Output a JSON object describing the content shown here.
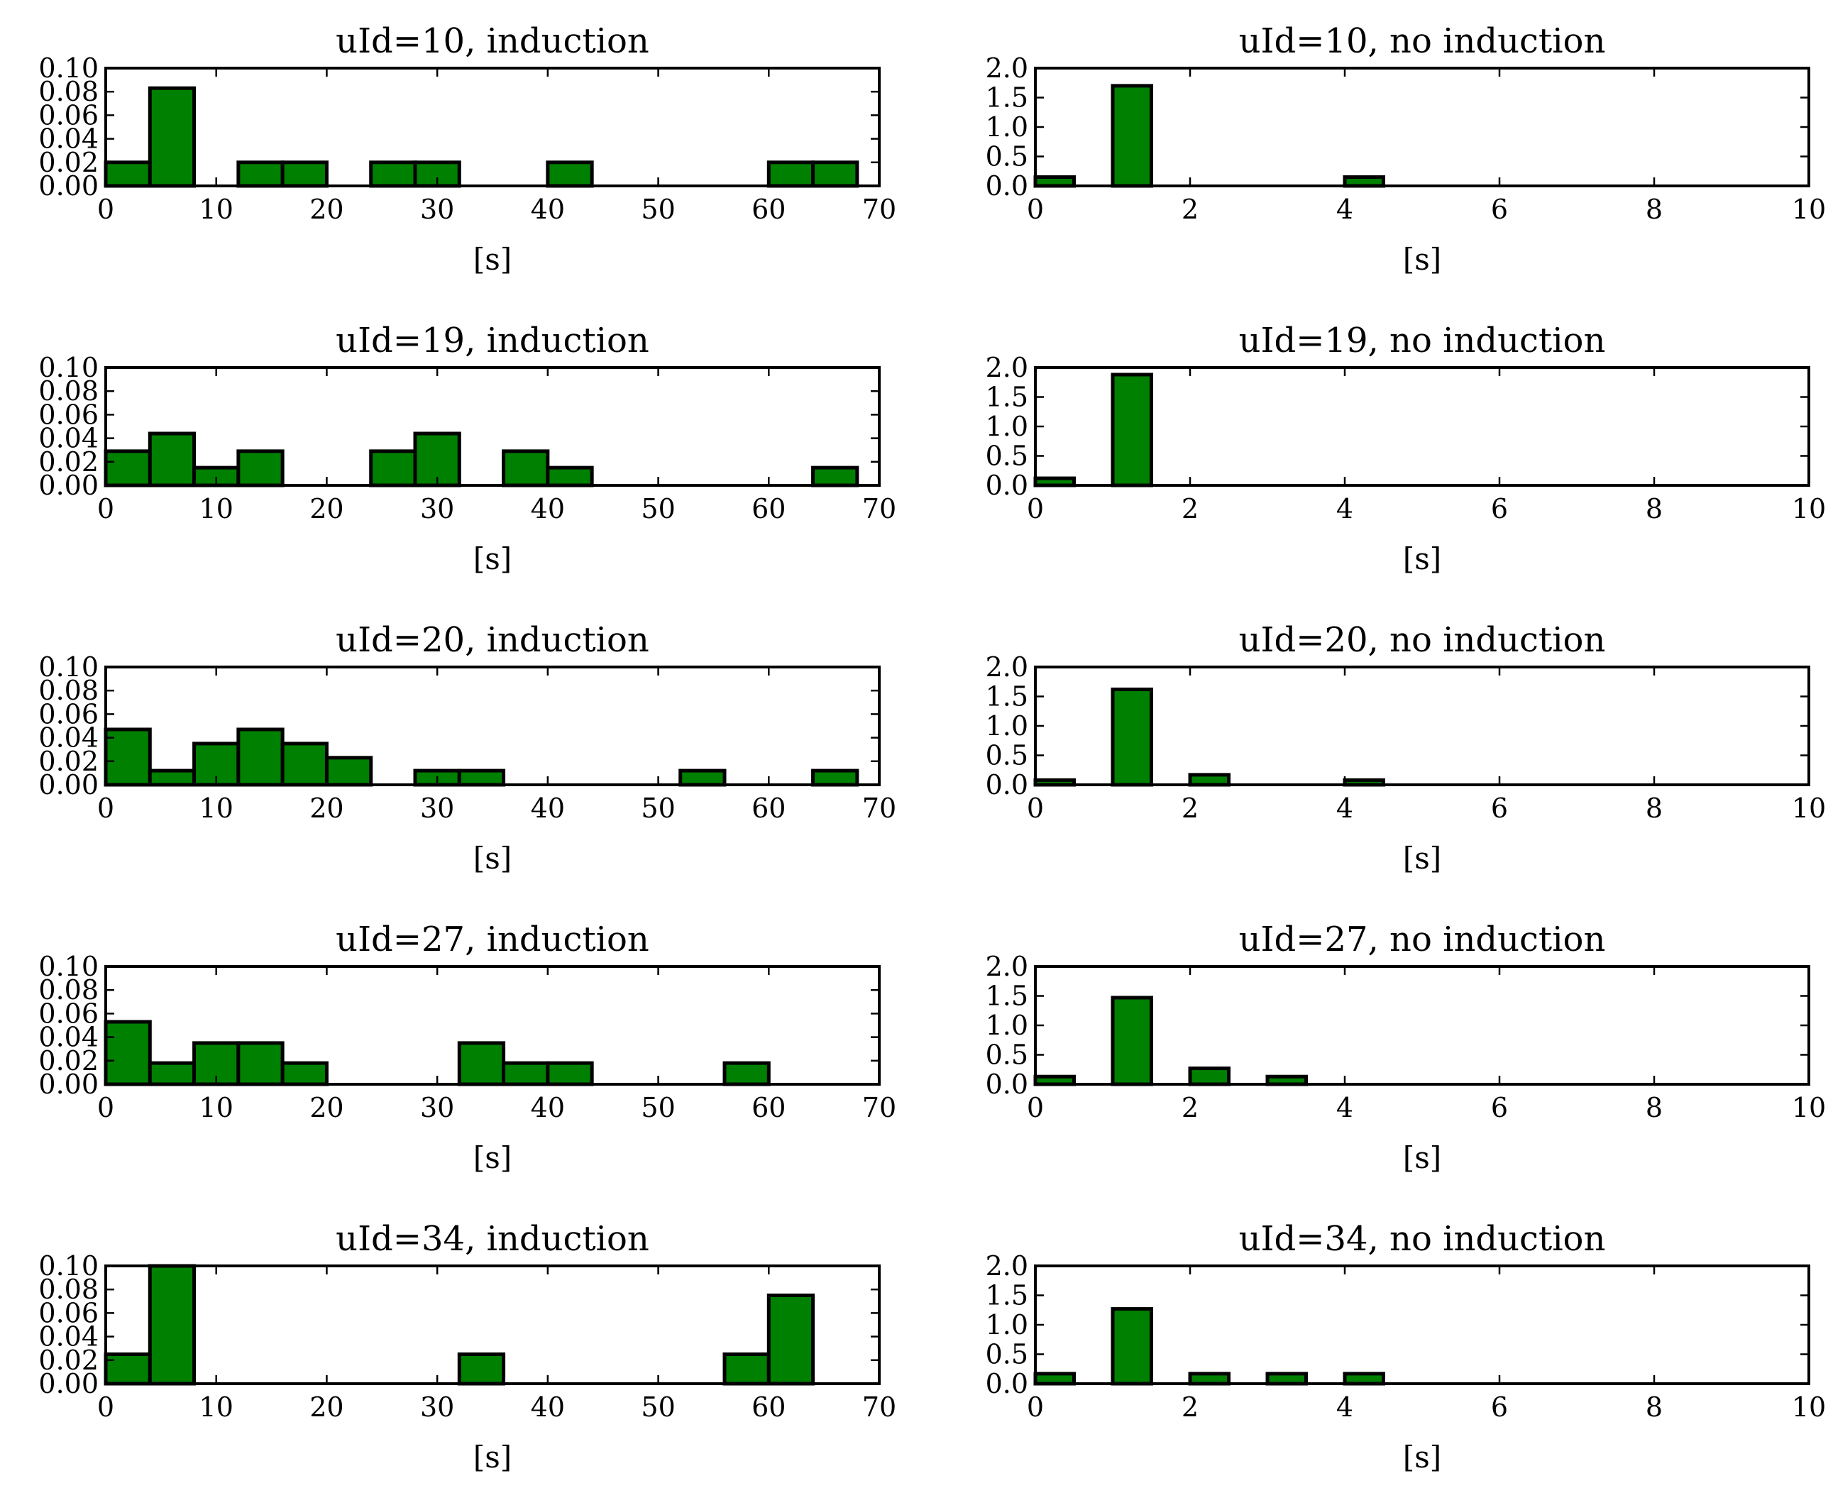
{
  "colors": {
    "bar_fill": "#008000",
    "bar_edge": "#000000"
  },
  "chart_data": [
    {
      "type": "bar",
      "title": "uId=10, induction",
      "xlabel": "[s]",
      "ylabel": "",
      "xlim": [
        0,
        70
      ],
      "ylim": [
        0,
        0.1
      ],
      "xticks": [
        0,
        10,
        20,
        30,
        40,
        50,
        60,
        70
      ],
      "xtick_labels": [
        "0",
        "10",
        "20",
        "30",
        "40",
        "50",
        "60",
        "70"
      ],
      "yticks": [
        0,
        0.02,
        0.04,
        0.06,
        0.08,
        0.1
      ],
      "ytick_labels": [
        "0.00",
        "0.02",
        "0.04",
        "0.06",
        "0.08",
        "0.10"
      ],
      "bin_width": 4,
      "bars": [
        [
          0,
          0.02
        ],
        [
          4,
          0.083
        ],
        [
          12,
          0.02
        ],
        [
          16,
          0.02
        ],
        [
          24,
          0.02
        ],
        [
          28,
          0.02
        ],
        [
          40,
          0.02
        ],
        [
          60,
          0.02
        ],
        [
          64,
          0.02
        ]
      ]
    },
    {
      "type": "bar",
      "title": "uId=10, no induction",
      "xlabel": "[s]",
      "ylabel": "",
      "xlim": [
        0,
        10
      ],
      "ylim": [
        0,
        2.0
      ],
      "xticks": [
        0,
        2,
        4,
        6,
        8,
        10
      ],
      "xtick_labels": [
        "0",
        "2",
        "4",
        "6",
        "8",
        "10"
      ],
      "yticks": [
        0,
        0.5,
        1.0,
        1.5,
        2.0
      ],
      "ytick_labels": [
        "0.0",
        "0.5",
        "1.0",
        "1.5",
        "2.0"
      ],
      "bin_width": 0.5,
      "bars": [
        [
          0,
          0.15
        ],
        [
          1,
          1.7
        ],
        [
          4,
          0.15
        ]
      ]
    },
    {
      "type": "bar",
      "title": "uId=19, induction",
      "xlabel": "[s]",
      "ylabel": "",
      "xlim": [
        0,
        70
      ],
      "ylim": [
        0,
        0.1
      ],
      "xticks": [
        0,
        10,
        20,
        30,
        40,
        50,
        60,
        70
      ],
      "xtick_labels": [
        "0",
        "10",
        "20",
        "30",
        "40",
        "50",
        "60",
        "70"
      ],
      "yticks": [
        0,
        0.02,
        0.04,
        0.06,
        0.08,
        0.1
      ],
      "ytick_labels": [
        "0.00",
        "0.02",
        "0.04",
        "0.06",
        "0.08",
        "0.10"
      ],
      "bin_width": 4,
      "bars": [
        [
          0,
          0.029
        ],
        [
          4,
          0.044
        ],
        [
          8,
          0.015
        ],
        [
          12,
          0.029
        ],
        [
          24,
          0.029
        ],
        [
          28,
          0.044
        ],
        [
          36,
          0.029
        ],
        [
          40,
          0.015
        ],
        [
          64,
          0.015
        ]
      ]
    },
    {
      "type": "bar",
      "title": "uId=19, no induction",
      "xlabel": "[s]",
      "ylabel": "",
      "xlim": [
        0,
        10
      ],
      "ylim": [
        0,
        2.0
      ],
      "xticks": [
        0,
        2,
        4,
        6,
        8,
        10
      ],
      "xtick_labels": [
        "0",
        "2",
        "4",
        "6",
        "8",
        "10"
      ],
      "yticks": [
        0,
        0.5,
        1.0,
        1.5,
        2.0
      ],
      "ytick_labels": [
        "0.0",
        "0.5",
        "1.0",
        "1.5",
        "2.0"
      ],
      "bin_width": 0.5,
      "bars": [
        [
          0,
          0.12
        ],
        [
          1,
          1.88
        ]
      ]
    },
    {
      "type": "bar",
      "title": "uId=20, induction",
      "xlabel": "[s]",
      "ylabel": "",
      "xlim": [
        0,
        70
      ],
      "ylim": [
        0,
        0.1
      ],
      "xticks": [
        0,
        10,
        20,
        30,
        40,
        50,
        60,
        70
      ],
      "xtick_labels": [
        "0",
        "10",
        "20",
        "30",
        "40",
        "50",
        "60",
        "70"
      ],
      "yticks": [
        0,
        0.02,
        0.04,
        0.06,
        0.08,
        0.1
      ],
      "ytick_labels": [
        "0.00",
        "0.02",
        "0.04",
        "0.06",
        "0.08",
        "0.10"
      ],
      "bin_width": 4,
      "bars": [
        [
          0,
          0.047
        ],
        [
          4,
          0.012
        ],
        [
          8,
          0.035
        ],
        [
          12,
          0.047
        ],
        [
          16,
          0.035
        ],
        [
          20,
          0.023
        ],
        [
          28,
          0.012
        ],
        [
          32,
          0.012
        ],
        [
          52,
          0.012
        ],
        [
          64,
          0.012
        ]
      ]
    },
    {
      "type": "bar",
      "title": "uId=20, no induction",
      "xlabel": "[s]",
      "ylabel": "",
      "xlim": [
        0,
        10
      ],
      "ylim": [
        0,
        2.0
      ],
      "xticks": [
        0,
        2,
        4,
        6,
        8,
        10
      ],
      "xtick_labels": [
        "0",
        "2",
        "4",
        "6",
        "8",
        "10"
      ],
      "yticks": [
        0,
        0.5,
        1.0,
        1.5,
        2.0
      ],
      "ytick_labels": [
        "0.0",
        "0.5",
        "1.0",
        "1.5",
        "2.0"
      ],
      "bin_width": 0.5,
      "bars": [
        [
          0,
          0.08
        ],
        [
          1,
          1.62
        ],
        [
          2,
          0.17
        ],
        [
          4,
          0.08
        ]
      ]
    },
    {
      "type": "bar",
      "title": "uId=27, induction",
      "xlabel": "[s]",
      "ylabel": "",
      "xlim": [
        0,
        70
      ],
      "ylim": [
        0,
        0.1
      ],
      "xticks": [
        0,
        10,
        20,
        30,
        40,
        50,
        60,
        70
      ],
      "xtick_labels": [
        "0",
        "10",
        "20",
        "30",
        "40",
        "50",
        "60",
        "70"
      ],
      "yticks": [
        0,
        0.02,
        0.04,
        0.06,
        0.08,
        0.1
      ],
      "ytick_labels": [
        "0.00",
        "0.02",
        "0.04",
        "0.06",
        "0.08",
        "0.10"
      ],
      "bin_width": 4,
      "bars": [
        [
          0,
          0.053
        ],
        [
          4,
          0.018
        ],
        [
          8,
          0.035
        ],
        [
          12,
          0.035
        ],
        [
          16,
          0.018
        ],
        [
          32,
          0.035
        ],
        [
          36,
          0.018
        ],
        [
          40,
          0.018
        ],
        [
          56,
          0.018
        ]
      ]
    },
    {
      "type": "bar",
      "title": "uId=27, no induction",
      "xlabel": "[s]",
      "ylabel": "",
      "xlim": [
        0,
        10
      ],
      "ylim": [
        0,
        2.0
      ],
      "xticks": [
        0,
        2,
        4,
        6,
        8,
        10
      ],
      "xtick_labels": [
        "0",
        "2",
        "4",
        "6",
        "8",
        "10"
      ],
      "yticks": [
        0,
        0.5,
        1.0,
        1.5,
        2.0
      ],
      "ytick_labels": [
        "0.0",
        "0.5",
        "1.0",
        "1.5",
        "2.0"
      ],
      "bin_width": 0.5,
      "bars": [
        [
          0,
          0.13
        ],
        [
          1,
          1.47
        ],
        [
          2,
          0.27
        ],
        [
          3,
          0.13
        ]
      ]
    },
    {
      "type": "bar",
      "title": "uId=34, induction",
      "xlabel": "[s]",
      "ylabel": "",
      "xlim": [
        0,
        70
      ],
      "ylim": [
        0,
        0.1
      ],
      "xticks": [
        0,
        10,
        20,
        30,
        40,
        50,
        60,
        70
      ],
      "xtick_labels": [
        "0",
        "10",
        "20",
        "30",
        "40",
        "50",
        "60",
        "70"
      ],
      "yticks": [
        0,
        0.02,
        0.04,
        0.06,
        0.08,
        0.1
      ],
      "ytick_labels": [
        "0.00",
        "0.02",
        "0.04",
        "0.06",
        "0.08",
        "0.10"
      ],
      "bin_width": 4,
      "bars": [
        [
          0,
          0.025
        ],
        [
          4,
          0.1
        ],
        [
          32,
          0.025
        ],
        [
          56,
          0.025
        ],
        [
          60,
          0.075
        ]
      ]
    },
    {
      "type": "bar",
      "title": "uId=34, no induction",
      "xlabel": "[s]",
      "ylabel": "",
      "xlim": [
        0,
        10
      ],
      "ylim": [
        0,
        2.0
      ],
      "xticks": [
        0,
        2,
        4,
        6,
        8,
        10
      ],
      "xtick_labels": [
        "0",
        "2",
        "4",
        "6",
        "8",
        "10"
      ],
      "yticks": [
        0,
        0.5,
        1.0,
        1.5,
        2.0
      ],
      "ytick_labels": [
        "0.0",
        "0.5",
        "1.0",
        "1.5",
        "2.0"
      ],
      "bin_width": 0.5,
      "bars": [
        [
          0,
          0.17
        ],
        [
          1,
          1.27
        ],
        [
          2,
          0.17
        ],
        [
          3,
          0.17
        ],
        [
          4,
          0.17
        ]
      ]
    }
  ]
}
